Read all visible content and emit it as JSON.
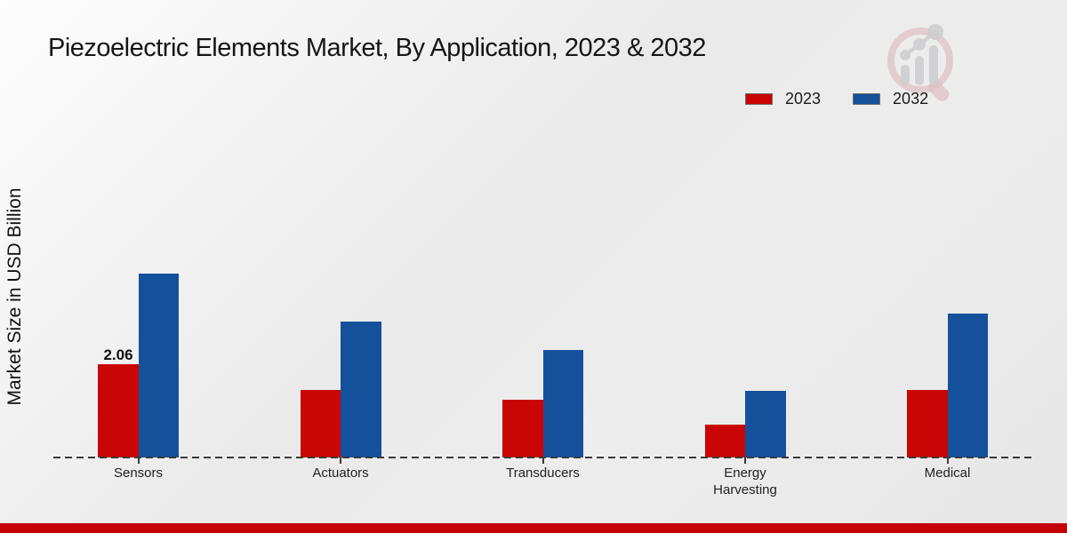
{
  "title": "Piezoelectric Elements Market, By Application, 2023 & 2032",
  "ylabel": "Market Size in USD Billion",
  "legend": [
    {
      "label": "2023",
      "color": "#c90505"
    },
    {
      "label": "2032",
      "color": "#15519b"
    }
  ],
  "annotation": {
    "value_label": "2.06"
  },
  "colors": {
    "bar_2023": "#c90505",
    "bar_2032": "#15519b",
    "footer_bar": "#c40404",
    "baseline": "#3a3a3a"
  },
  "chart_data": {
    "type": "bar",
    "title": "Piezoelectric Elements Market, By Application, 2023 & 2032",
    "ylabel": "Market Size in USD Billion",
    "xlabel": "",
    "categories": [
      "Sensors",
      "Actuators",
      "Transducers",
      "Energy Harvesting",
      "Medical"
    ],
    "series": [
      {
        "name": "2023",
        "color": "#c90505",
        "values": [
          2.06,
          1.49,
          1.28,
          0.73,
          1.49
        ]
      },
      {
        "name": "2032",
        "color": "#15519b",
        "values": [
          4.06,
          3.0,
          2.37,
          1.47,
          3.18
        ]
      }
    ],
    "data_labels": [
      {
        "series": "2023",
        "category": "Sensors",
        "text": "2.06"
      }
    ],
    "ylim": [
      0,
      4.5
    ],
    "grid": false,
    "axis_style": "dashed-baseline-only",
    "legend_position": "top-right"
  }
}
